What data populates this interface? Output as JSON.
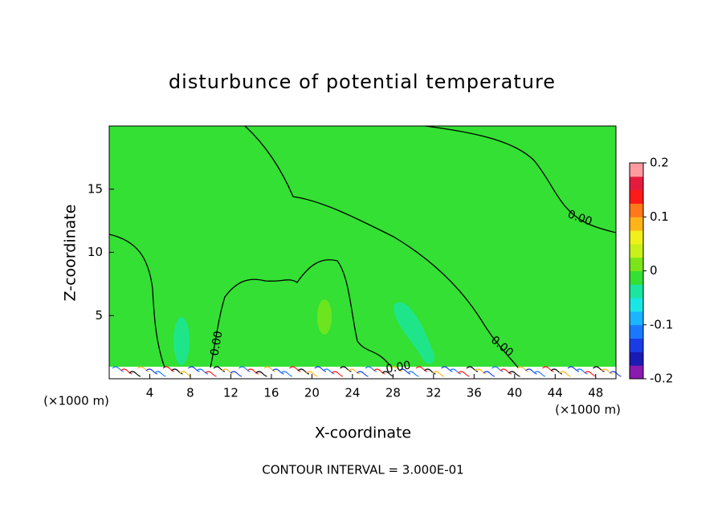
{
  "chart_data": {
    "type": "contour",
    "title": "disturbunce of potential temperature",
    "x_label": "X-coordinate",
    "y_label": "Z-coordinate",
    "x_unit_label": "(×1000 m)",
    "x_unit_label_right": "(×1000 m)",
    "footnote": "CONTOUR INTERVAL = 3.000E-01",
    "xlim": [
      0,
      50
    ],
    "xticks": [
      4,
      8,
      12,
      16,
      20,
      24,
      28,
      32,
      36,
      40,
      44,
      48
    ],
    "ylim": [
      0,
      20
    ],
    "yticks": [
      5,
      10,
      15
    ],
    "field_color": "#33e033",
    "contour_labels": [
      "0.00",
      "0.00",
      "0.00",
      "0.00"
    ],
    "colorbar": {
      "lim": [
        -0.2,
        0.2
      ],
      "ticks": [
        0.2,
        0.1,
        0,
        -0.1,
        -0.2
      ],
      "colors": [
        "#8a1ab0",
        "#1a1ab4",
        "#1a3ce6",
        "#1a78ff",
        "#1ab4ff",
        "#1ae6e6",
        "#1ae6a0",
        "#33e033",
        "#7ae61a",
        "#c8f01a",
        "#f0f01a",
        "#ffb41a",
        "#ff781a",
        "#ff1a1a",
        "#e61a3c",
        "#ff9aa0"
      ]
    }
  }
}
